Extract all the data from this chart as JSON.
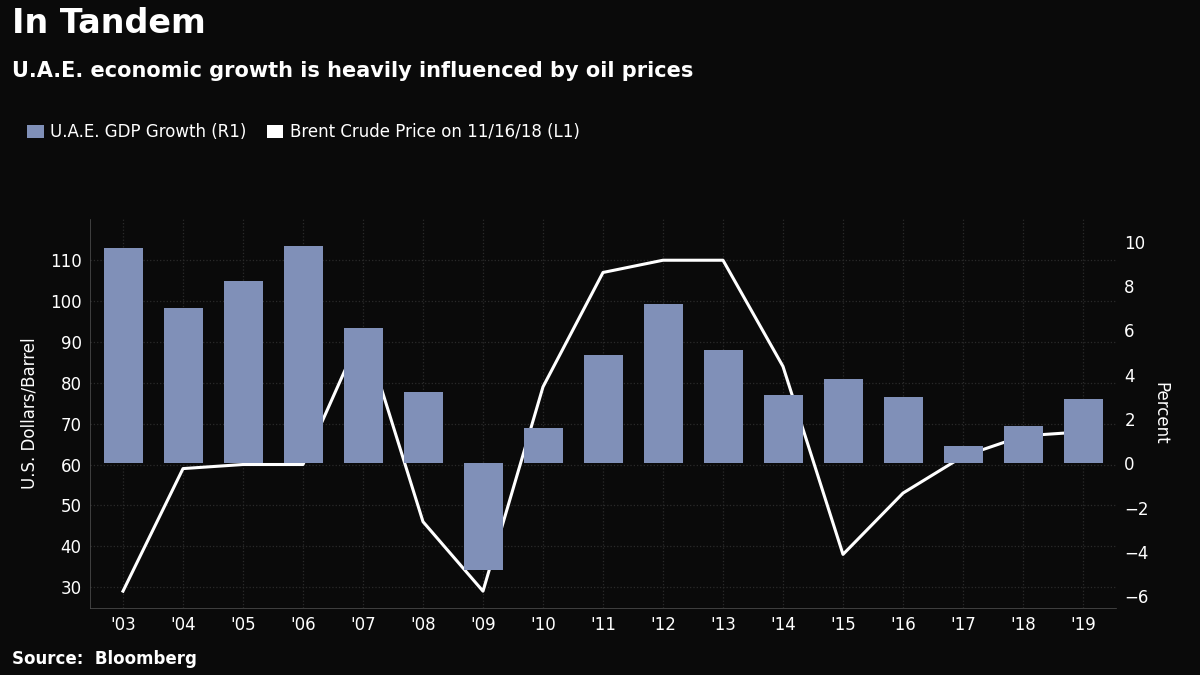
{
  "title": "In Tandem",
  "subtitle": "U.A.E. economic growth is heavily influenced by oil prices",
  "source": "Source:  Bloomberg",
  "years": [
    "'03",
    "'04",
    "'05",
    "'06",
    "'07",
    "'08",
    "'09",
    "'10",
    "'11",
    "'12",
    "'13",
    "'14",
    "'15",
    "'16",
    "'17",
    "'18",
    "'19"
  ],
  "brent_crude": [
    29,
    59,
    60,
    60,
    93,
    46,
    29,
    79,
    107,
    110,
    110,
    84,
    38,
    53,
    62,
    67,
    68
  ],
  "gdp_growth": [
    9.7,
    7.0,
    8.2,
    9.8,
    6.1,
    3.2,
    -4.8,
    1.6,
    4.9,
    7.2,
    5.1,
    3.1,
    3.8,
    3.0,
    0.8,
    1.7,
    2.9
  ],
  "bar_color": "#8090b8",
  "line_color": "#ffffff",
  "bg_color": "#0a0a0a",
  "grid_color": "#2a2a2a",
  "text_color": "#ffffff",
  "ylabel_left": "U.S. Dollars/Barrel",
  "ylabel_right": "Percent",
  "ylim_left": [
    25,
    120
  ],
  "ylim_right": [
    -6.5,
    11.0
  ],
  "yticks_left": [
    30,
    40,
    50,
    60,
    70,
    80,
    90,
    100,
    110
  ],
  "yticks_right": [
    -6,
    -4,
    -2,
    0,
    2,
    4,
    6,
    8,
    10
  ],
  "legend_bar_label": "U.A.E. GDP Growth (R1)",
  "legend_line_label": "Brent Crude Price on 11/16/18 (L1)",
  "title_fontsize": 24,
  "subtitle_fontsize": 15,
  "tick_fontsize": 12,
  "label_fontsize": 12,
  "legend_fontsize": 12,
  "source_fontsize": 12,
  "bar_width": 0.65
}
